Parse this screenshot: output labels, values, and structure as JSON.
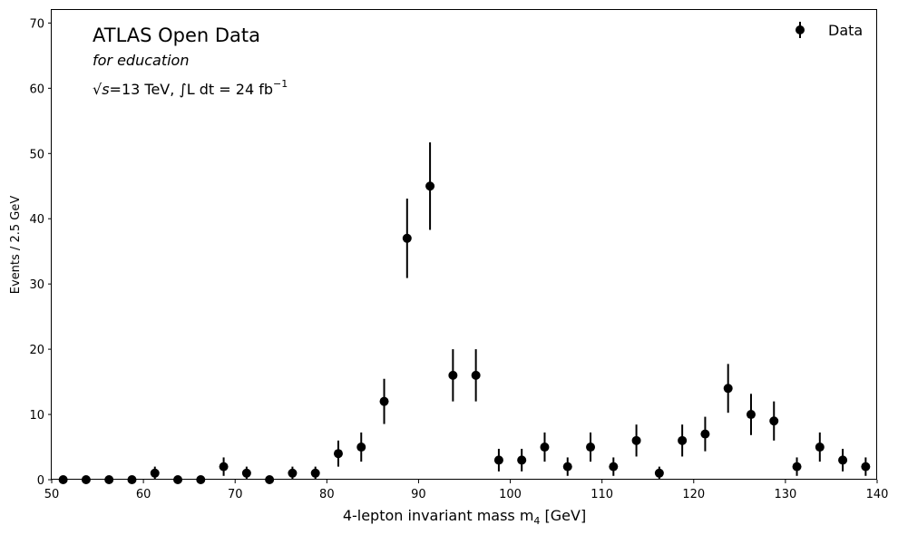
{
  "chart_data": {
    "type": "scatter",
    "style": "errorbar",
    "xlabel_main": "4-lepton invariant mass m",
    "xlabel_sub": "4",
    "xlabel_unit": " [GeV]",
    "ylabel": "Events / 2.5 GeV",
    "xlim": [
      50,
      140
    ],
    "ylim": [
      0,
      72
    ],
    "xticks": [
      50,
      60,
      70,
      80,
      90,
      100,
      110,
      120,
      130,
      140
    ],
    "yticks": [
      0,
      10,
      20,
      30,
      40,
      50,
      60,
      70
    ],
    "xtick_labels": [
      "50",
      "60",
      "70",
      "80",
      "90",
      "100",
      "110",
      "120",
      "130",
      "140"
    ],
    "ytick_labels": [
      "0",
      "10",
      "20",
      "30",
      "40",
      "50",
      "60",
      "70"
    ],
    "grid": false,
    "legend_position": "top-right",
    "annotations": {
      "title": "ATLAS Open Data",
      "subtitle": "for education",
      "energy_sqrt": "√",
      "energy_s": "s",
      "energy_text": "=13 TeV, ∫L dt = 24 fb",
      "energy_sup": "−1"
    },
    "series": [
      {
        "name": "Data",
        "color": "#000000",
        "x": [
          51.25,
          53.75,
          56.25,
          58.75,
          61.25,
          63.75,
          66.25,
          68.75,
          71.25,
          73.75,
          76.25,
          78.75,
          81.25,
          83.75,
          86.25,
          88.75,
          91.25,
          93.75,
          96.25,
          98.75,
          101.25,
          103.75,
          106.25,
          108.75,
          111.25,
          113.75,
          116.25,
          118.75,
          121.25,
          123.75,
          126.25,
          128.75,
          131.25,
          133.75,
          136.25,
          138.75
        ],
        "y": [
          0,
          0,
          0,
          0,
          1,
          0,
          0,
          2,
          1,
          0,
          1,
          1,
          4,
          5,
          12,
          37,
          45,
          16,
          16,
          3,
          3,
          5,
          2,
          5,
          2,
          6,
          1,
          6,
          7,
          14,
          10,
          9,
          2,
          5,
          3,
          2
        ]
      }
    ]
  }
}
